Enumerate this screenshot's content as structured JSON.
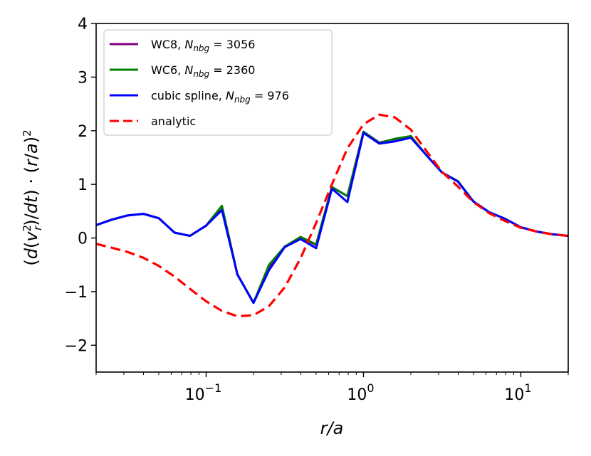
{
  "chart_data": {
    "type": "line",
    "xscale": "log",
    "xlim": [
      0.02,
      20
    ],
    "ylim": [
      -2.5,
      4
    ],
    "xlabel": "r/a",
    "ylabel": "(d(v_r^2)/dt) · (r/a)^2",
    "legend_position": "top-left",
    "y_ticks": [
      -2,
      -1,
      0,
      1,
      2,
      3,
      4
    ],
    "y_tick_labels": [
      "−2",
      "−1",
      "0",
      "1",
      "2",
      "3",
      "4"
    ],
    "x_major_ticks": [
      0.1,
      1,
      10
    ],
    "x_tick_labels": [
      {
        "base": "10",
        "exp": "−1"
      },
      {
        "base": "10",
        "exp": "0"
      },
      {
        "base": "10",
        "exp": "1"
      }
    ],
    "series": [
      {
        "name": "WC8",
        "nnbg": "3056",
        "color": "#800080",
        "style": "solid",
        "x": [
          0.02,
          0.025,
          0.0316,
          0.04,
          0.05,
          0.063,
          0.079,
          0.1,
          0.126,
          0.158,
          0.2,
          0.251,
          0.316,
          0.398,
          0.5,
          0.63,
          0.79,
          1.0,
          1.26,
          1.58,
          2.0,
          2.5,
          3.16,
          3.98,
          5.0,
          6.3,
          7.9,
          10,
          12.6,
          15.8,
          20
        ],
        "y": [
          0.24,
          0.34,
          0.42,
          0.45,
          0.37,
          0.1,
          0.04,
          0.23,
          0.59,
          -0.68,
          -1.21,
          -0.55,
          -0.16,
          0.0,
          -0.13,
          0.95,
          0.78,
          1.98,
          1.78,
          1.84,
          1.89,
          1.55,
          1.22,
          1.06,
          0.68,
          0.48,
          0.36,
          0.2,
          0.12,
          0.07,
          0.04
        ]
      },
      {
        "name": "WC6",
        "nnbg": "2360",
        "color": "#008000",
        "style": "solid",
        "x": [
          0.02,
          0.025,
          0.0316,
          0.04,
          0.05,
          0.063,
          0.079,
          0.1,
          0.126,
          0.158,
          0.2,
          0.251,
          0.316,
          0.398,
          0.5,
          0.63,
          0.79,
          1.0,
          1.26,
          1.58,
          2.0,
          2.5,
          3.16,
          3.98,
          5.0,
          6.3,
          7.9,
          10,
          12.6,
          15.8,
          20
        ],
        "y": [
          0.24,
          0.34,
          0.42,
          0.45,
          0.37,
          0.1,
          0.04,
          0.23,
          0.6,
          -0.68,
          -1.21,
          -0.5,
          -0.16,
          0.02,
          -0.12,
          0.95,
          0.78,
          1.98,
          1.77,
          1.85,
          1.9,
          1.55,
          1.22,
          1.06,
          0.68,
          0.48,
          0.36,
          0.2,
          0.12,
          0.07,
          0.04
        ]
      },
      {
        "name": "cubic spline",
        "nnbg": "976",
        "color": "#0000ff",
        "style": "solid",
        "x": [
          0.02,
          0.025,
          0.0316,
          0.04,
          0.05,
          0.063,
          0.079,
          0.1,
          0.126,
          0.158,
          0.2,
          0.251,
          0.316,
          0.398,
          0.5,
          0.63,
          0.79,
          1.0,
          1.26,
          1.58,
          2.0,
          2.5,
          3.16,
          3.98,
          5.0,
          6.3,
          7.9,
          10,
          12.6,
          15.8,
          20
        ],
        "y": [
          0.24,
          0.34,
          0.42,
          0.45,
          0.37,
          0.1,
          0.04,
          0.23,
          0.52,
          -0.68,
          -1.21,
          -0.6,
          -0.17,
          -0.02,
          -0.19,
          0.92,
          0.67,
          1.96,
          1.76,
          1.8,
          1.87,
          1.55,
          1.22,
          1.05,
          0.68,
          0.48,
          0.36,
          0.2,
          0.12,
          0.07,
          0.04
        ]
      },
      {
        "name": "analytic",
        "nnbg": "",
        "color": "#ff0000",
        "style": "dashed",
        "x": [
          0.02,
          0.025,
          0.0316,
          0.04,
          0.05,
          0.063,
          0.079,
          0.1,
          0.126,
          0.158,
          0.2,
          0.251,
          0.316,
          0.398,
          0.5,
          0.63,
          0.79,
          1.0,
          1.26,
          1.58,
          2.0,
          2.5,
          3.16,
          3.98,
          5.0,
          6.3,
          7.9,
          10,
          12.6,
          15.8,
          20
        ],
        "y": [
          -0.11,
          -0.18,
          -0.26,
          -0.37,
          -0.52,
          -0.72,
          -0.95,
          -1.18,
          -1.36,
          -1.46,
          -1.44,
          -1.27,
          -0.92,
          -0.38,
          0.28,
          1.0,
          1.67,
          2.12,
          2.3,
          2.25,
          2.02,
          1.63,
          1.23,
          0.96,
          0.67,
          0.46,
          0.32,
          0.19,
          0.12,
          0.07,
          0.04
        ]
      }
    ]
  }
}
